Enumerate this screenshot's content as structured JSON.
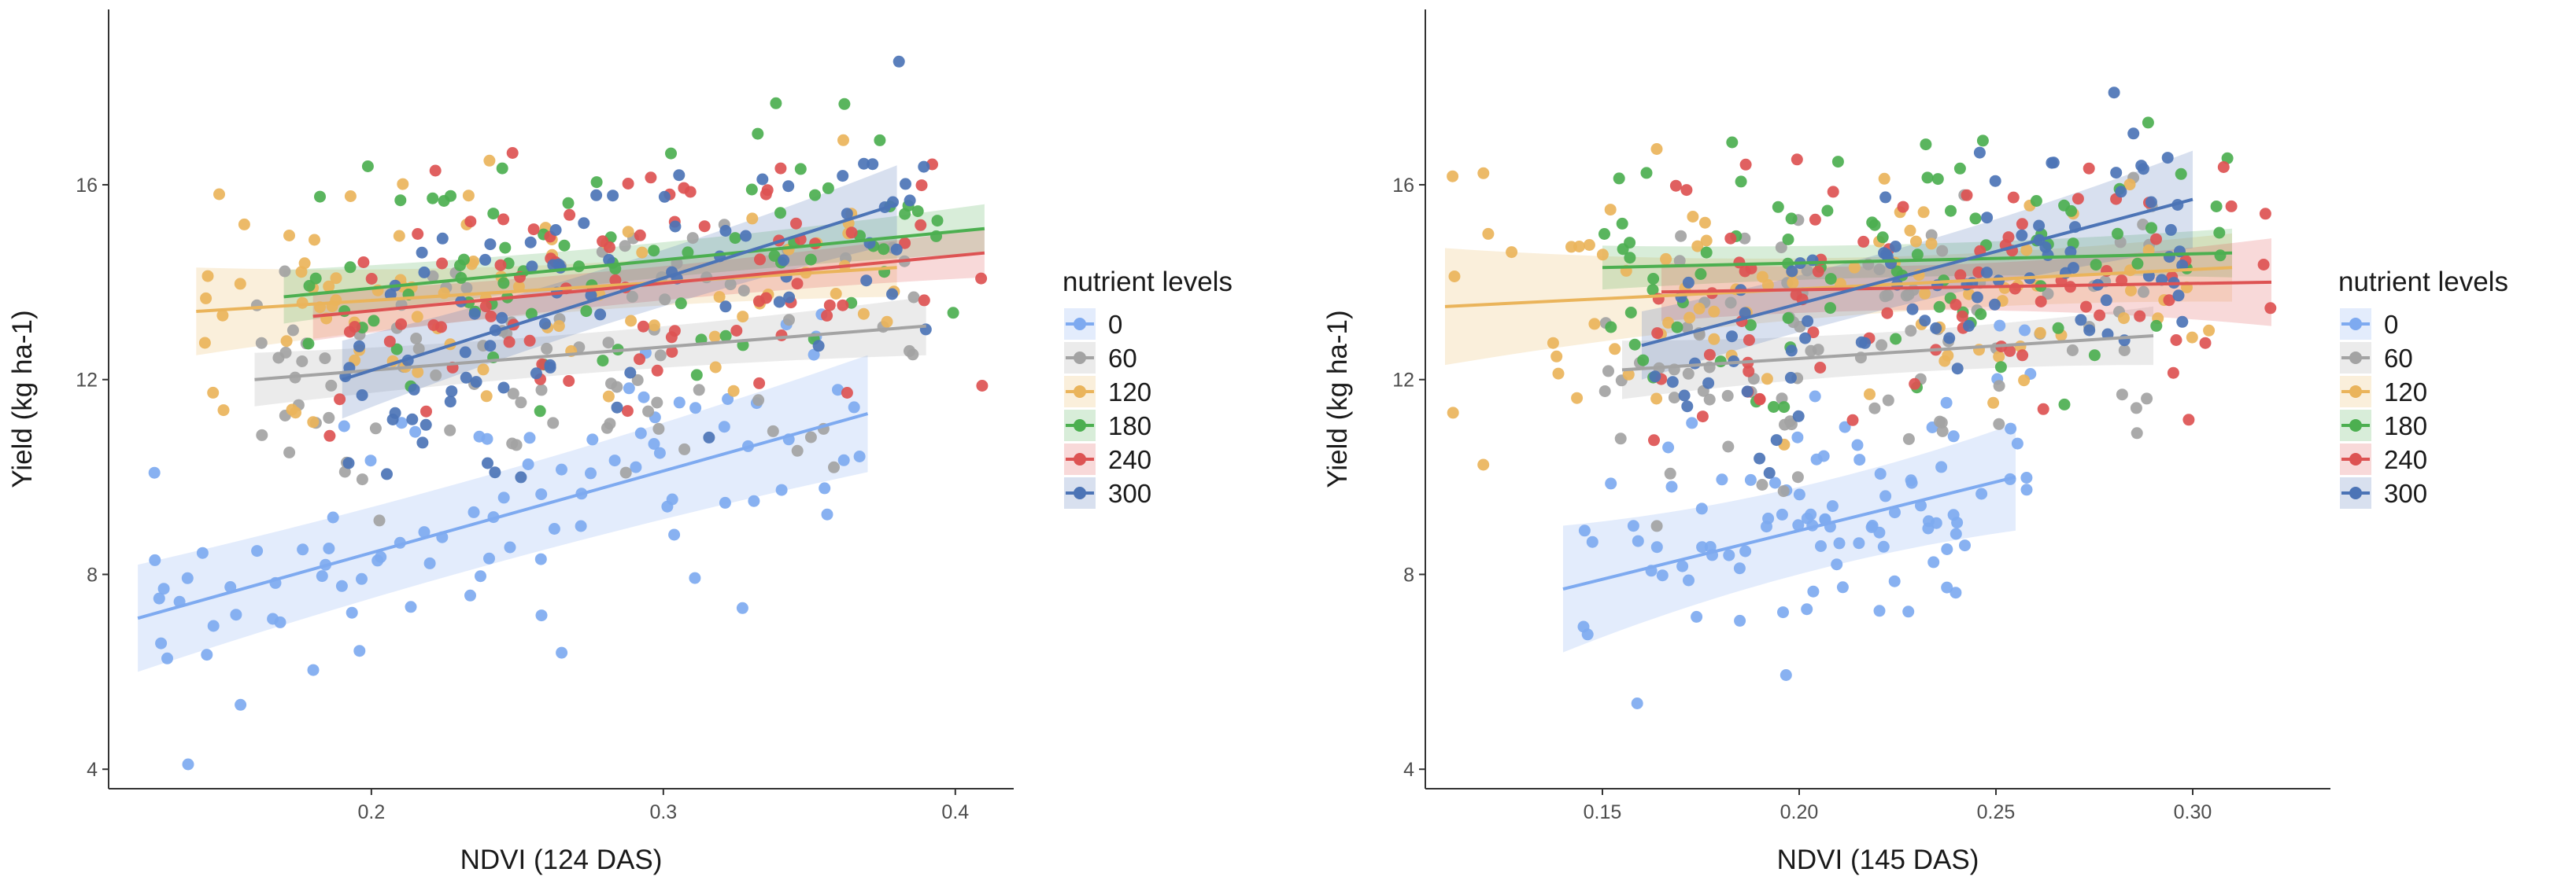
{
  "chart_data": [
    {
      "type": "scatter",
      "panel": "left",
      "title": "",
      "xlabel": "NDVI (124 DAS)",
      "ylabel": "Yield (kg ha-1)",
      "xlim": [
        0.11,
        0.42
      ],
      "ylim": [
        3.6,
        19.6
      ],
      "xticks": [
        0.2,
        0.3,
        0.4
      ],
      "xtick_labels": [
        "0.2",
        "0.3",
        "0.4"
      ],
      "yticks": [
        4,
        8,
        12,
        16
      ],
      "ytick_labels": [
        "4",
        "8",
        "12",
        "16"
      ],
      "grid": false,
      "legend": "right",
      "legend_title": "nutrient levels",
      "series": [
        {
          "name": "0",
          "color": "#7eaaf0",
          "seed": 11,
          "n": 95,
          "xrange": [
            0.12,
            0.37
          ],
          "fit": {
            "x": [
              0.12,
              0.37
            ],
            "y": [
              7.1,
              11.3
            ],
            "ci": [
              1.1,
              0.7,
              1.2
            ]
          }
        },
        {
          "name": "60",
          "color": "#a3a3a3",
          "seed": 22,
          "n": 90,
          "xrange": [
            0.16,
            0.39
          ],
          "fit": {
            "x": [
              0.16,
              0.39
            ],
            "y": [
              12.0,
              13.1
            ],
            "ci": [
              0.55,
              0.25,
              0.6
            ]
          }
        },
        {
          "name": "120",
          "color": "#eab45b",
          "seed": 33,
          "n": 85,
          "xrange": [
            0.14,
            0.39
          ],
          "fit": {
            "x": [
              0.14,
              0.38
            ],
            "y": [
              13.4,
              14.3
            ],
            "ci": [
              0.9,
              0.25,
              0.6
            ]
          }
        },
        {
          "name": "180",
          "color": "#4caf50",
          "seed": 44,
          "n": 80,
          "xrange": [
            0.17,
            0.41
          ],
          "fit": {
            "x": [
              0.17,
              0.41
            ],
            "y": [
              13.7,
              15.1
            ],
            "ci": [
              0.55,
              0.2,
              0.5
            ]
          }
        },
        {
          "name": "240",
          "color": "#dd5353",
          "seed": 55,
          "n": 80,
          "xrange": [
            0.18,
            0.41
          ],
          "fit": {
            "x": [
              0.18,
              0.41
            ],
            "y": [
              13.3,
              14.6
            ],
            "ci": [
              0.5,
              0.2,
              0.5
            ]
          }
        },
        {
          "name": "300",
          "color": "#4c74b6",
          "seed": 66,
          "n": 85,
          "xrange": [
            0.19,
            0.39
          ],
          "fit": {
            "x": [
              0.19,
              0.38
            ],
            "y": [
              12.0,
              15.6
            ],
            "ci": [
              0.8,
              0.35,
              0.8
            ]
          }
        }
      ]
    },
    {
      "type": "scatter",
      "panel": "right",
      "title": "",
      "xlabel": "NDVI (145 DAS)",
      "ylabel": "Yield (kg ha-1)",
      "xlim": [
        0.105,
        0.335
      ],
      "ylim": [
        3.6,
        19.6
      ],
      "xticks": [
        0.15,
        0.2,
        0.25,
        0.3
      ],
      "xtick_labels": [
        "0.15",
        "0.20",
        "0.25",
        "0.30"
      ],
      "yticks": [
        4,
        8,
        12,
        16
      ],
      "ytick_labels": [
        "4",
        "8",
        "12",
        "16"
      ],
      "grid": false,
      "legend": "right",
      "legend_title": "nutrient levels",
      "series": [
        {
          "name": "0",
          "color": "#7eaaf0",
          "seed": 77,
          "n": 95,
          "xrange": [
            0.14,
            0.26
          ],
          "fit": {
            "x": [
              0.14,
              0.255
            ],
            "y": [
              7.7,
              10.0
            ],
            "ci": [
              1.3,
              0.6,
              1.1
            ]
          }
        },
        {
          "name": "60",
          "color": "#a3a3a3",
          "seed": 88,
          "n": 90,
          "xrange": [
            0.15,
            0.29
          ],
          "fit": {
            "x": [
              0.155,
              0.29
            ],
            "y": [
              12.2,
              12.9
            ],
            "ci": [
              0.6,
              0.25,
              0.6
            ]
          }
        },
        {
          "name": "120",
          "color": "#eab45b",
          "seed": 99,
          "n": 85,
          "xrange": [
            0.11,
            0.31
          ],
          "fit": {
            "x": [
              0.11,
              0.31
            ],
            "y": [
              13.5,
              14.3
            ],
            "ci": [
              1.2,
              0.25,
              0.7
            ]
          }
        },
        {
          "name": "180",
          "color": "#4caf50",
          "seed": 111,
          "n": 85,
          "xrange": [
            0.15,
            0.31
          ],
          "fit": {
            "x": [
              0.15,
              0.31
            ],
            "y": [
              14.3,
              14.6
            ],
            "ci": [
              0.45,
              0.2,
              0.5
            ]
          }
        },
        {
          "name": "240",
          "color": "#dd5353",
          "seed": 122,
          "n": 80,
          "xrange": [
            0.16,
            0.32
          ],
          "fit": {
            "x": [
              0.165,
              0.32
            ],
            "y": [
              13.8,
              14.0
            ],
            "ci": [
              0.6,
              0.2,
              0.9
            ]
          }
        },
        {
          "name": "300",
          "color": "#4c74b6",
          "seed": 133,
          "n": 85,
          "xrange": [
            0.16,
            0.3
          ],
          "fit": {
            "x": [
              0.16,
              0.3
            ],
            "y": [
              12.7,
              15.7
            ],
            "ci": [
              0.7,
              0.35,
              1.0
            ]
          }
        }
      ]
    }
  ]
}
